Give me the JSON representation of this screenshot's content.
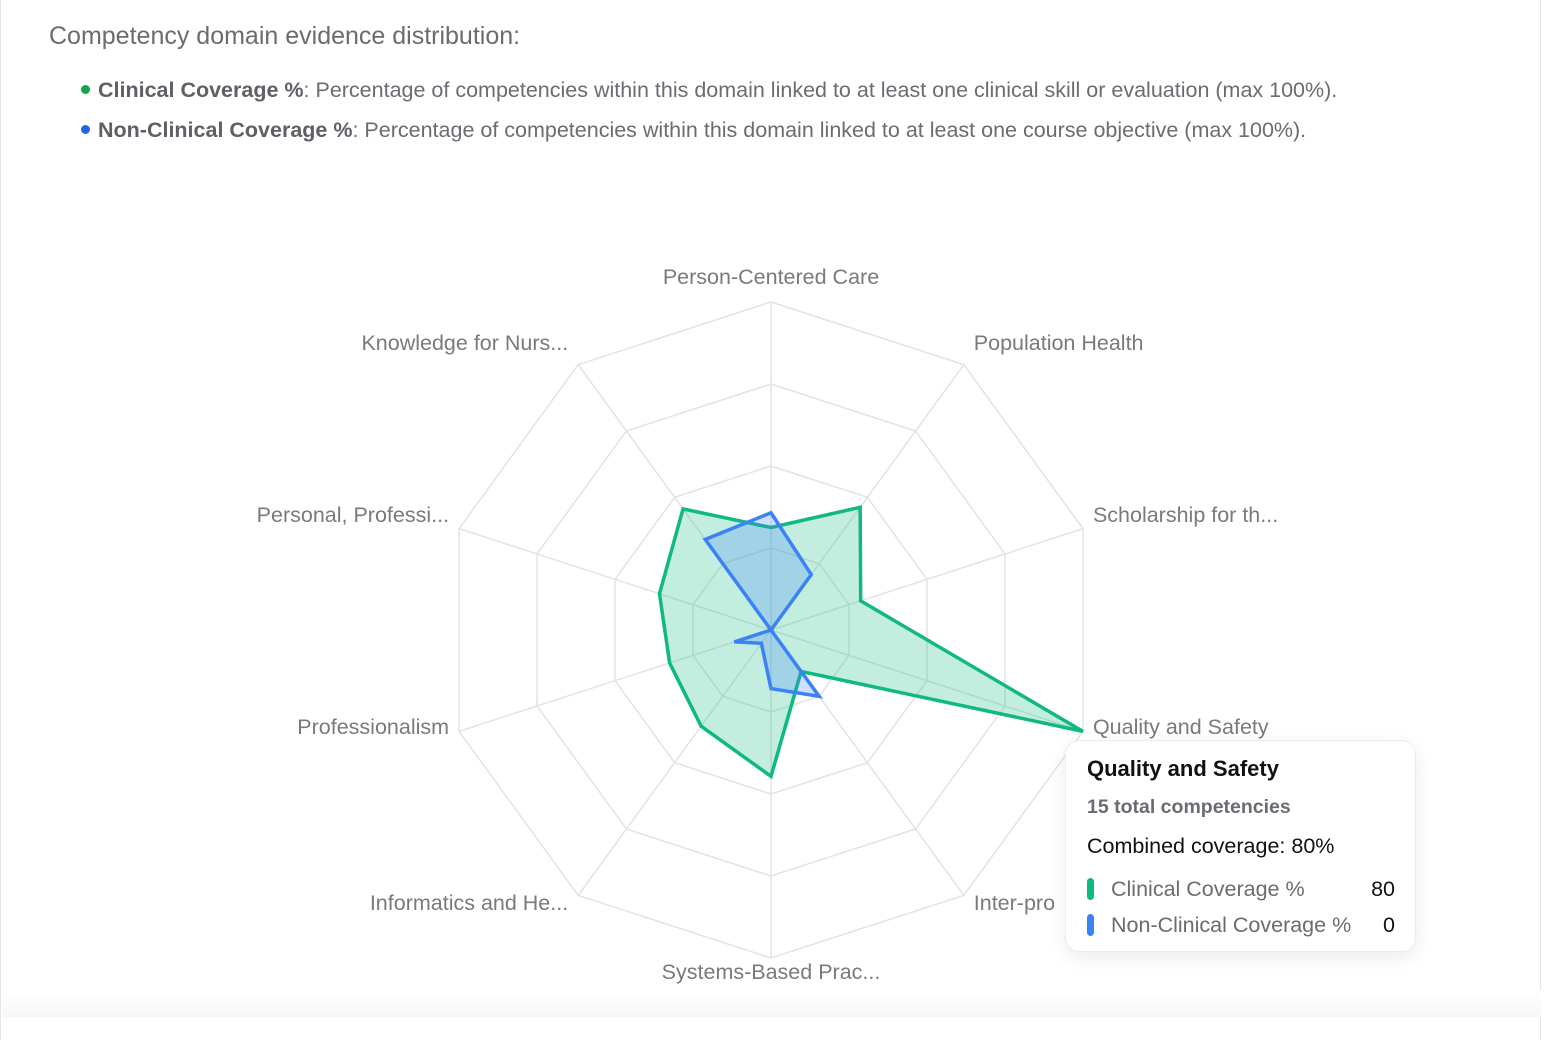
{
  "heading": "Competency domain evidence distribution:",
  "legend": [
    {
      "name": "Clinical Coverage %",
      "description": ": Percentage of competencies within this domain linked to at least one clinical skill or evaluation (max 100%).",
      "color": "#16a34a"
    },
    {
      "name": "Non-Clinical Coverage %",
      "description": ": Percentage of competencies within this domain linked to at least one course objective (max 100%).",
      "color": "#2563eb"
    }
  ],
  "chart_data": {
    "type": "radar",
    "title": "Competency domain evidence distribution",
    "categories": [
      "Person-Centered Care",
      "Population Health",
      "Scholarship for th...",
      "Quality and Safety",
      "Inter-professional Partnerships",
      "Systems-Based Prac...",
      "Informatics and He...",
      "Professionalism",
      "Personal, Professi...",
      "Knowledge for Nurs..."
    ],
    "display_labels": [
      "Person-Centered Care",
      "Population Health",
      "Scholarship for th...",
      "Quality and Safety",
      "Inter-pro",
      "Systems-Based Prac...",
      "Informatics and He...",
      "Professionalism",
      "Personal, Professi...",
      "Knowledge for Nurs..."
    ],
    "series": [
      {
        "name": "Clinical Coverage %",
        "color": "#10b981",
        "fill": "rgba(16,185,129,0.25)",
        "values": [
          25,
          37,
          23,
          80,
          12.5,
          35.7,
          29,
          26,
          28.6,
          36.5
        ]
      },
      {
        "name": "Non-Clinical Coverage %",
        "color": "#3b82f6",
        "fill": "rgba(59,130,246,0.25)",
        "values": [
          28.6,
          16.7,
          0,
          0,
          20,
          14.3,
          4,
          9.4,
          0,
          27.3
        ]
      }
    ],
    "rmax": 80,
    "grid_rings": 4,
    "grid": true,
    "legend_position": "top"
  },
  "tooltip": {
    "title": "Quality and Safety",
    "total": "15 total competencies",
    "combined": "Combined coverage: 80%",
    "rows": [
      {
        "name": "Clinical Coverage %",
        "value": "80",
        "color": "#10b981"
      },
      {
        "name": "Non-Clinical Coverage %",
        "value": "0",
        "color": "#3b82f6"
      }
    ]
  }
}
